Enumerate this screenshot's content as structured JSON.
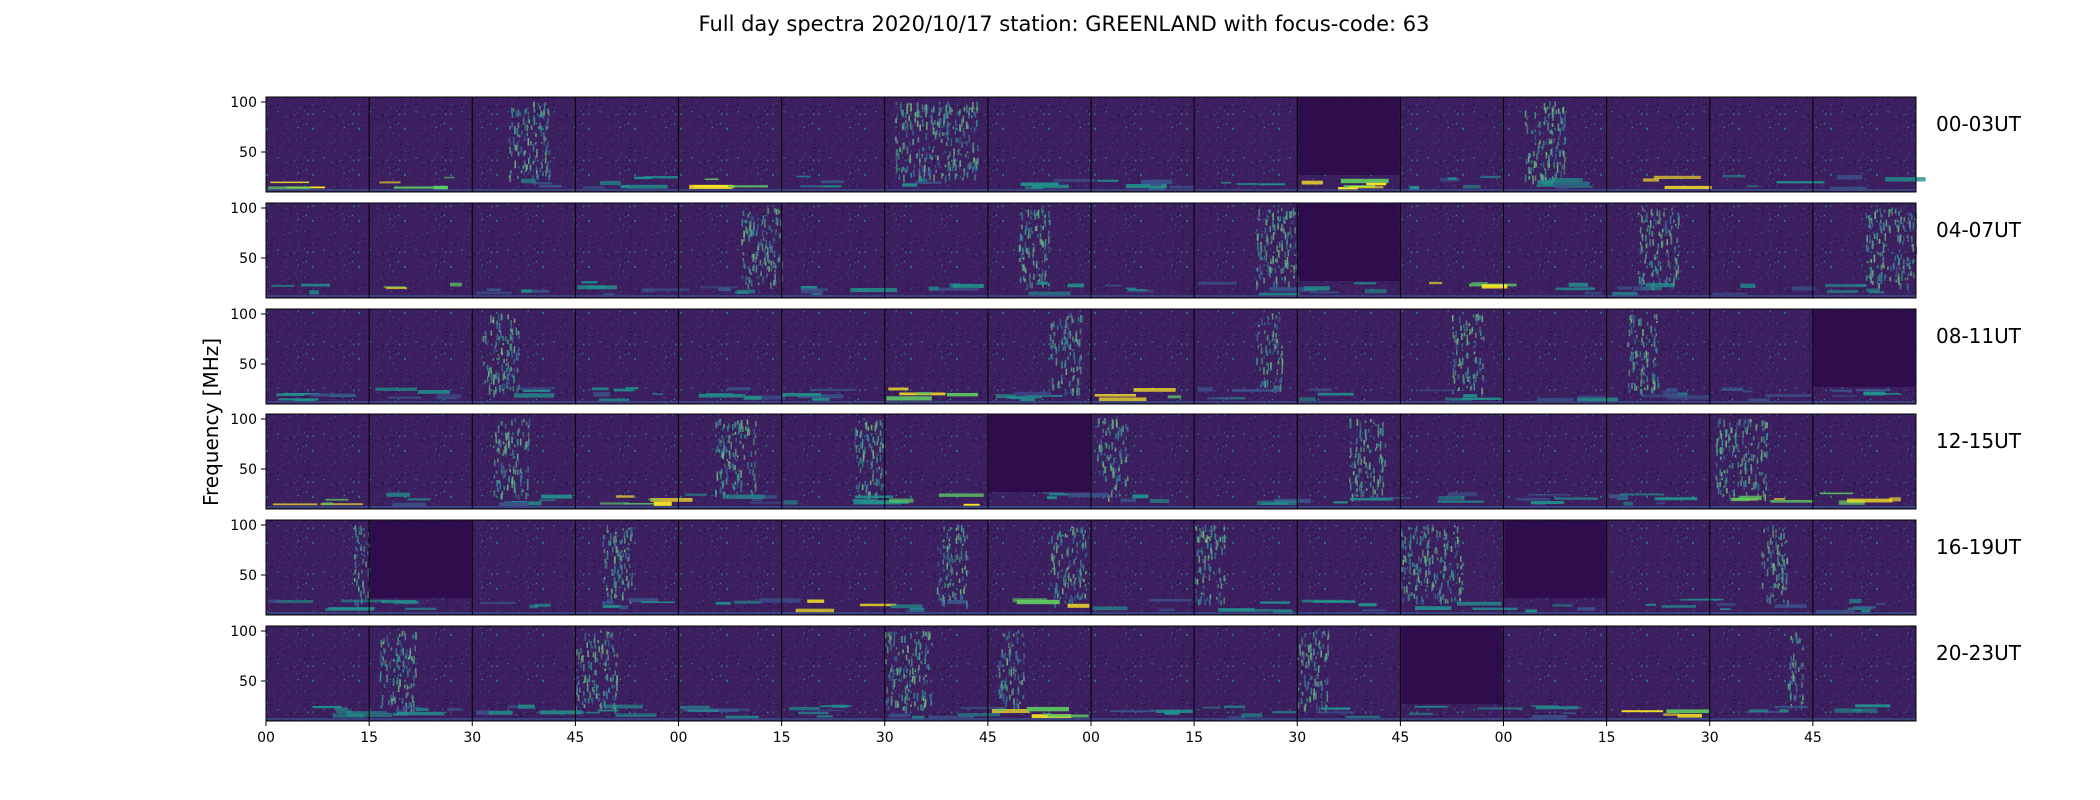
{
  "chart_data": {
    "type": "heatmap",
    "title": "Full day spectra 2020/10/17 station: GREENLAND with focus-code: 63",
    "ylabel": "Frequency [MHz]",
    "xlabel": "",
    "ylim": [
      10,
      105
    ],
    "yticks": [
      50,
      100
    ],
    "xticks": [
      "00",
      "15",
      "30",
      "45",
      "00",
      "15",
      "30",
      "45",
      "00",
      "15",
      "30",
      "45",
      "00",
      "15",
      "30",
      "45"
    ],
    "rows": [
      {
        "label": "00-03UT",
        "bursts": [
          [
            2,
            0.35,
            0.75
          ],
          [
            6,
            0.1,
            0.9
          ],
          [
            12,
            0.2,
            0.6
          ]
        ],
        "quiet": [
          10
        ]
      },
      {
        "label": "04-07UT",
        "bursts": [
          [
            4,
            0.6,
            1.0
          ],
          [
            7,
            0.3,
            0.6
          ],
          [
            9,
            0.6,
            1.0
          ],
          [
            13,
            0.3,
            0.7
          ],
          [
            15,
            0.5,
            1.0
          ]
        ],
        "quiet": [
          10
        ]
      },
      {
        "label": "08-11UT",
        "bursts": [
          [
            2,
            0.1,
            0.45
          ],
          [
            7,
            0.6,
            0.9
          ],
          [
            9,
            0.6,
            0.85
          ],
          [
            11,
            0.5,
            0.8
          ],
          [
            13,
            0.2,
            0.5
          ]
        ],
        "quiet": [
          15
        ]
      },
      {
        "label": "12-15UT",
        "bursts": [
          [
            2,
            0.2,
            0.55
          ],
          [
            4,
            0.35,
            0.75
          ],
          [
            5,
            0.7,
            1.0
          ],
          [
            8,
            0.05,
            0.35
          ],
          [
            10,
            0.5,
            0.85
          ],
          [
            14,
            0.05,
            0.55
          ]
        ],
        "quiet": [
          7
        ]
      },
      {
        "label": "16-19UT",
        "bursts": [
          [
            0,
            0.85,
            1.0
          ],
          [
            3,
            0.25,
            0.55
          ],
          [
            6,
            0.5,
            0.8
          ],
          [
            7,
            0.6,
            0.95
          ],
          [
            9,
            0.0,
            0.3
          ],
          [
            11,
            0.0,
            0.6
          ],
          [
            14,
            0.5,
            0.75
          ]
        ],
        "quiet": [
          1,
          12
        ]
      },
      {
        "label": "20-23UT",
        "bursts": [
          [
            1,
            0.1,
            0.45
          ],
          [
            3,
            0.0,
            0.4
          ],
          [
            6,
            0.0,
            0.45
          ],
          [
            7,
            0.1,
            0.35
          ],
          [
            10,
            0.0,
            0.3
          ],
          [
            14,
            0.75,
            0.9
          ]
        ],
        "quiet": [
          11
        ]
      }
    ],
    "colormap": [
      "#440154",
      "#3b528b",
      "#21918c",
      "#5ec962",
      "#fde725"
    ],
    "background_color": "#3b1f5e",
    "quiet_color": "#2f0a4a"
  }
}
